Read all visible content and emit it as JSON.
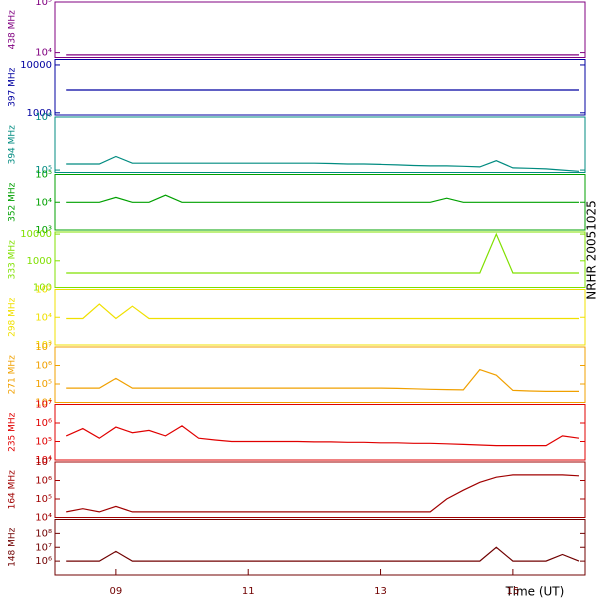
{
  "chart_data": {
    "type": "line",
    "log_y": true,
    "xlabel": "Time (UT)",
    "side_label": "NRHR 20051025",
    "xlim": [
      8.08,
      16.09
    ],
    "xticks": [
      {
        "value": 9,
        "label": "09"
      },
      {
        "value": 11,
        "label": "11"
      },
      {
        "value": 13,
        "label": "13"
      },
      {
        "value": 15,
        "label": "15"
      }
    ],
    "x": [
      8.25,
      8.5,
      8.75,
      9.0,
      9.25,
      9.5,
      9.75,
      10.0,
      10.25,
      10.5,
      10.75,
      11.0,
      11.25,
      11.5,
      11.75,
      12.0,
      12.25,
      12.5,
      12.75,
      13.0,
      13.25,
      13.5,
      13.75,
      14.0,
      14.25,
      14.5,
      14.75,
      15.0,
      15.25,
      15.5,
      15.75,
      16.0
    ],
    "panels": [
      {
        "name": "438 MHz",
        "color": "#800080",
        "ylim": [
          8000,
          100000
        ],
        "yticks": [
          {
            "value": 10000,
            "label": "10⁴"
          },
          {
            "value": 100000,
            "label": "10⁵"
          }
        ],
        "values": [
          9000,
          9000,
          9000,
          9000,
          9000,
          9000,
          9000,
          9000,
          9000,
          9000,
          9000,
          9000,
          9000,
          9000,
          9000,
          9000,
          9000,
          9000,
          9000,
          9000,
          9000,
          9000,
          9000,
          9000,
          9000,
          9000,
          9000,
          9000,
          9000,
          9000,
          9000,
          9000
        ]
      },
      {
        "name": "397 MHz",
        "color": "#0000a0",
        "ylim": [
          900,
          13000
        ],
        "yticks": [
          1000,
          10000
        ],
        "values": [
          3000,
          3000,
          3000,
          3000,
          3000,
          3000,
          3000,
          3000,
          3000,
          3000,
          3000,
          3000,
          3000,
          3000,
          3000,
          3000,
          3000,
          3000,
          3000,
          3000,
          3000,
          3000,
          3000,
          3000,
          3000,
          3000,
          3000,
          3000,
          3000,
          3000,
          3000,
          3000
        ]
      },
      {
        "name": "394 MHz",
        "color": "#008b80",
        "ylim": [
          90000,
          1000000
        ],
        "yticks": [
          {
            "value": 100000,
            "label": "10⁵"
          },
          {
            "value": 1000000,
            "label": "10⁶"
          }
        ],
        "values": [
          130000,
          130000,
          130000,
          180000,
          135000,
          135000,
          135000,
          135000,
          135000,
          135000,
          135000,
          135000,
          135000,
          135000,
          135000,
          135000,
          133000,
          130000,
          130000,
          128000,
          125000,
          122000,
          120000,
          120000,
          118000,
          115000,
          150000,
          110000,
          108000,
          105000,
          100000,
          95000
        ]
      },
      {
        "name": "352 MHz",
        "color": "#00a000",
        "ylim": [
          1000,
          100000
        ],
        "yticks": [
          {
            "value": 1000,
            "label": "10³"
          },
          {
            "value": 10000,
            "label": "10⁴"
          },
          {
            "value": 100000,
            "label": "10⁵"
          }
        ],
        "values": [
          10000,
          10000,
          10000,
          15000,
          10000,
          10000,
          18000,
          10000,
          10000,
          10000,
          10000,
          10000,
          10000,
          10000,
          10000,
          10000,
          10000,
          10000,
          10000,
          10000,
          10000,
          10000,
          10000,
          14000,
          10000,
          10000,
          10000,
          10000,
          10000,
          10000,
          10000,
          10000
        ]
      },
      {
        "name": "333 MHz",
        "color": "#80e000",
        "ylim": [
          100,
          12000
        ],
        "yticks": [
          100,
          1000,
          10000
        ],
        "values": [
          350,
          350,
          350,
          350,
          350,
          350,
          350,
          350,
          350,
          350,
          350,
          350,
          350,
          350,
          350,
          350,
          350,
          350,
          350,
          350,
          350,
          350,
          350,
          350,
          350,
          350,
          10000,
          350,
          350,
          350,
          350,
          350
        ]
      },
      {
        "name": "298 MHz",
        "color": "#f0e000",
        "ylim": [
          1000,
          100000
        ],
        "yticks": [
          {
            "value": 1000,
            "label": "10³"
          },
          {
            "value": 10000,
            "label": "10⁴"
          },
          {
            "value": 100000,
            "label": "10⁵"
          }
        ],
        "values": [
          9000,
          9000,
          30000,
          9000,
          25000,
          9000,
          9000,
          9000,
          9000,
          9000,
          9000,
          9000,
          9000,
          9000,
          9000,
          9000,
          9000,
          9000,
          9000,
          9000,
          9000,
          9000,
          9000,
          9000,
          9000,
          9000,
          9000,
          9000,
          9000,
          9000,
          9000,
          9000
        ]
      },
      {
        "name": "271 MHz",
        "color": "#f0a000",
        "ylim": [
          10000,
          10000000
        ],
        "yticks": [
          {
            "value": 10000,
            "label": "10⁴"
          },
          {
            "value": 100000,
            "label": "10⁵"
          },
          {
            "value": 1000000,
            "label": "10⁶"
          },
          {
            "value": 10000000,
            "label": "10⁷"
          }
        ],
        "values": [
          60000,
          60000,
          60000,
          200000,
          60000,
          60000,
          60000,
          60000,
          60000,
          60000,
          60000,
          60000,
          60000,
          60000,
          60000,
          60000,
          60000,
          60000,
          60000,
          60000,
          58000,
          55000,
          52000,
          50000,
          48000,
          600000,
          300000,
          45000,
          42000,
          40000,
          40000,
          40000
        ]
      },
      {
        "name": "235 MHz",
        "color": "#e00000",
        "ylim": [
          10000,
          10000000
        ],
        "yticks": [
          {
            "value": 10000,
            "label": "10⁴"
          },
          {
            "value": 100000,
            "label": "10⁵"
          },
          {
            "value": 1000000,
            "label": "10⁶"
          },
          {
            "value": 10000000,
            "label": "10⁷"
          }
        ],
        "values": [
          200000,
          500000,
          150000,
          600000,
          300000,
          400000,
          200000,
          700000,
          150000,
          120000,
          100000,
          100000,
          100000,
          100000,
          100000,
          95000,
          95000,
          90000,
          90000,
          85000,
          85000,
          80000,
          80000,
          75000,
          70000,
          65000,
          60000,
          60000,
          60000,
          60000,
          200000,
          150000
        ]
      },
      {
        "name": "164 MHz",
        "color": "#a00000",
        "ylim": [
          10000,
          10000000
        ],
        "yticks": [
          {
            "value": 10000,
            "label": "10⁴"
          },
          {
            "value": 100000,
            "label": "10⁵"
          },
          {
            "value": 1000000,
            "label": "10⁶"
          },
          {
            "value": 10000000,
            "label": "10⁷"
          }
        ],
        "values": [
          20000,
          30000,
          20000,
          40000,
          20000,
          20000,
          20000,
          20000,
          20000,
          20000,
          20000,
          20000,
          20000,
          20000,
          20000,
          20000,
          20000,
          20000,
          20000,
          20000,
          20000,
          20000,
          20000,
          100000,
          300000,
          800000,
          1500000,
          2000000,
          2000000,
          2000000,
          2000000,
          1800000
        ]
      },
      {
        "name": "148 MHz",
        "color": "#700000",
        "ylim": [
          100000,
          1000000000
        ],
        "yticks": [
          {
            "value": 1000000,
            "label": "10⁶"
          },
          {
            "value": 10000000,
            "label": "10⁷"
          },
          {
            "value": 100000000,
            "label": "10⁸"
          }
        ],
        "values": [
          1000000,
          1000000,
          1000000,
          5000000,
          1000000,
          1000000,
          1000000,
          1000000,
          1000000,
          1000000,
          1000000,
          1000000,
          1000000,
          1000000,
          1000000,
          1000000,
          1000000,
          1000000,
          1000000,
          1000000,
          1000000,
          1000000,
          1000000,
          1000000,
          1000000,
          1000000,
          10000000,
          1000000,
          1000000,
          1000000,
          3000000,
          1000000
        ]
      }
    ]
  }
}
